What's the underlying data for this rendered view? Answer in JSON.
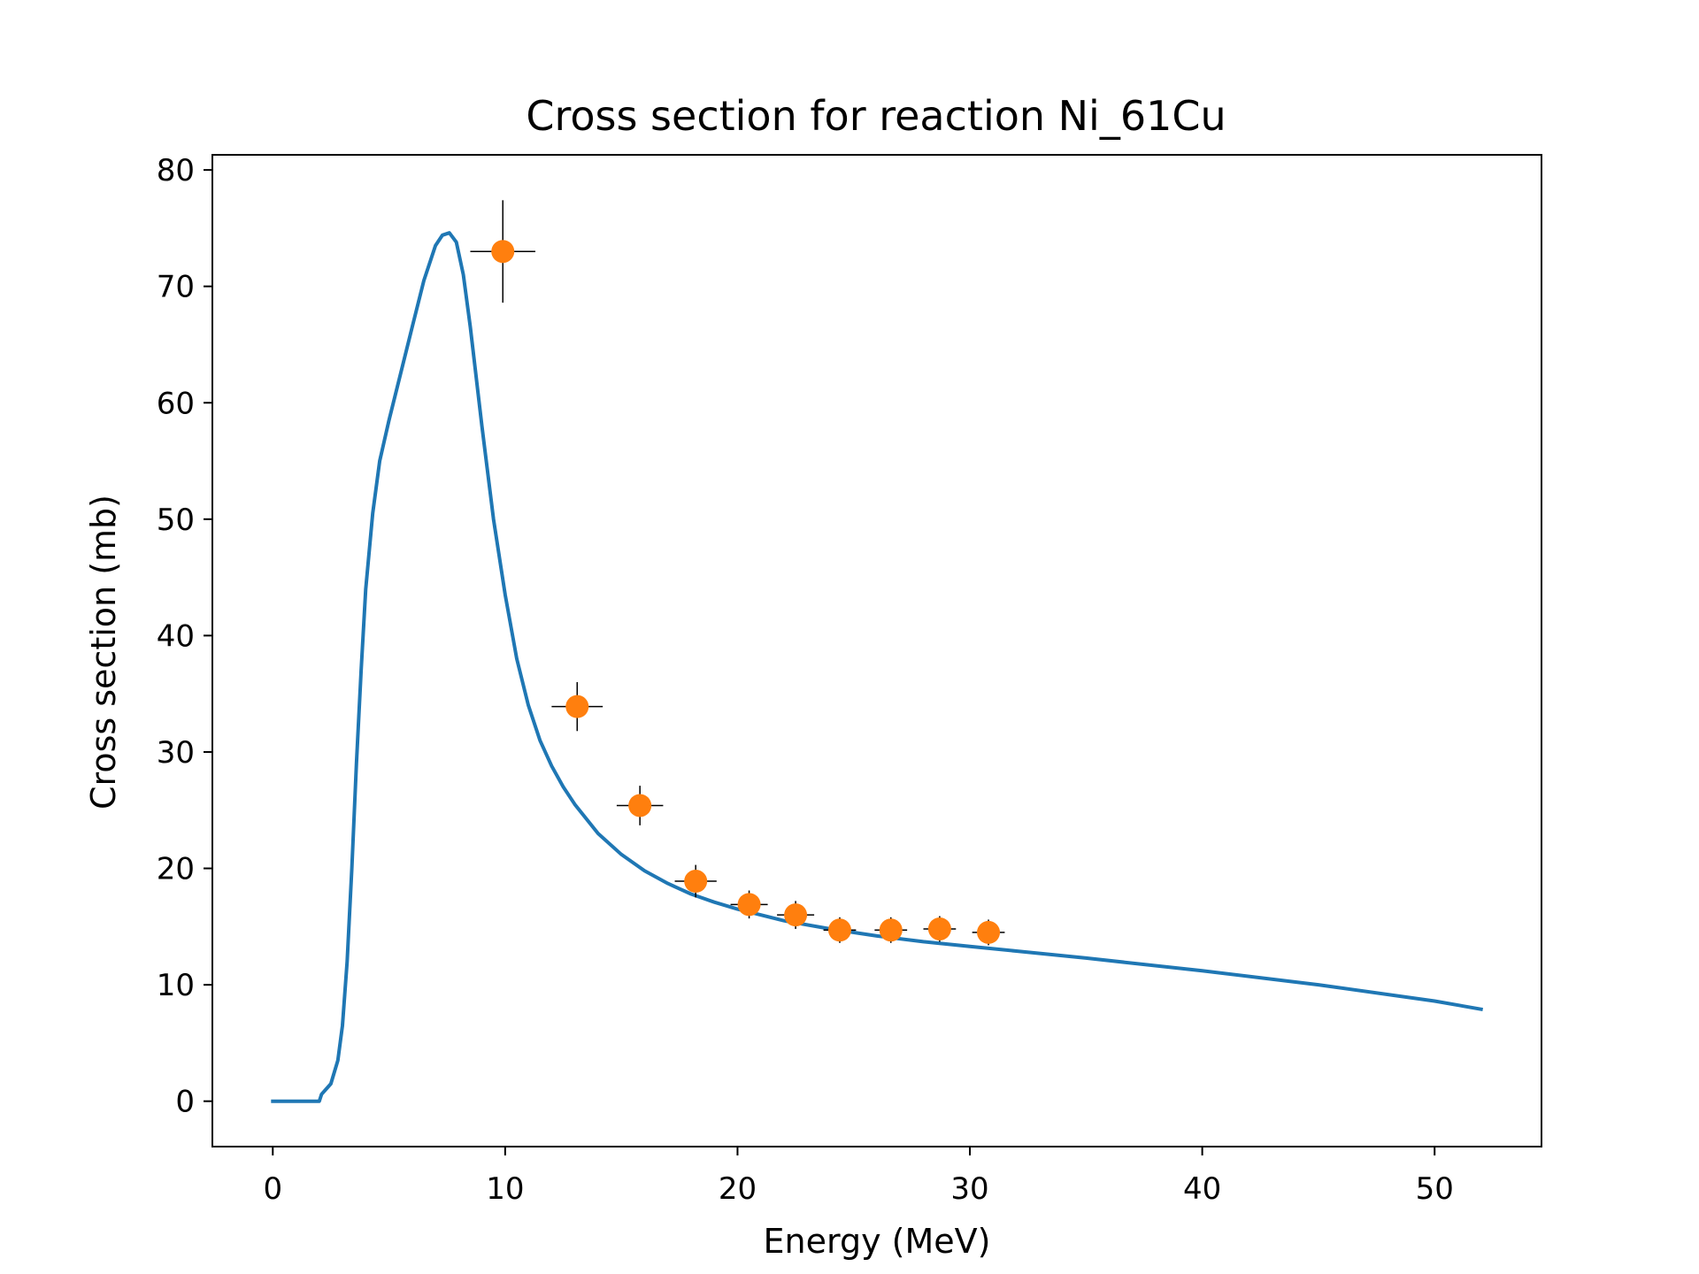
{
  "chart_data": {
    "type": "line",
    "title": "Cross section for reaction Ni_61Cu",
    "xlabel": "Energy (MeV)",
    "ylabel": "Cross section (mb)",
    "xlim": [
      -2.6,
      54.6
    ],
    "ylim": [
      -3.9,
      81.3
    ],
    "xticks": [
      0,
      10,
      20,
      30,
      40,
      50
    ],
    "yticks": [
      0,
      10,
      20,
      30,
      40,
      50,
      60,
      70,
      80
    ],
    "grid": false,
    "series": [
      {
        "kind": "line",
        "color": "#1f77b4",
        "x": [
          0,
          2.0,
          2.1,
          2.5,
          2.8,
          3.0,
          3.2,
          3.4,
          3.6,
          3.8,
          4.0,
          4.3,
          4.6,
          5.0,
          5.5,
          6.0,
          6.5,
          7.0,
          7.3,
          7.6,
          7.9,
          8.2,
          8.5,
          9.0,
          9.5,
          10.0,
          10.5,
          11.0,
          11.5,
          12.0,
          12.5,
          13.0,
          14.0,
          15.0,
          16.0,
          17.0,
          18.0,
          19.0,
          20.0,
          22.0,
          24.0,
          26.0,
          28.0,
          30.0,
          32.0,
          35.0,
          40.0,
          45.0,
          50.0,
          52.0
        ],
        "y": [
          0,
          0,
          0.6,
          1.5,
          3.5,
          6.5,
          12.0,
          20.0,
          29.0,
          37.0,
          44.0,
          50.5,
          55.0,
          58.5,
          62.5,
          66.5,
          70.5,
          73.5,
          74.4,
          74.6,
          73.8,
          71.0,
          66.5,
          58.0,
          50.0,
          43.5,
          38.0,
          34.0,
          31.0,
          28.8,
          27.0,
          25.5,
          23.0,
          21.2,
          19.8,
          18.7,
          17.8,
          17.1,
          16.5,
          15.5,
          14.8,
          14.2,
          13.7,
          13.3,
          12.9,
          12.3,
          11.2,
          10.0,
          8.6,
          7.9
        ]
      },
      {
        "kind": "errorbar",
        "color": "#ff7f0e",
        "ecolor": "#000000",
        "x": [
          9.9,
          13.1,
          15.8,
          18.2,
          20.5,
          22.5,
          24.4,
          26.6,
          28.7,
          30.8
        ],
        "y": [
          73.0,
          33.9,
          25.4,
          18.9,
          16.9,
          16.0,
          14.7,
          14.7,
          14.8,
          14.5
        ],
        "xerr": [
          1.4,
          1.1,
          1.0,
          0.9,
          0.8,
          0.8,
          0.7,
          0.7,
          0.7,
          0.7
        ],
        "yerr": [
          4.4,
          2.1,
          1.7,
          1.4,
          1.2,
          1.2,
          1.1,
          1.1,
          1.1,
          1.1
        ]
      }
    ]
  }
}
